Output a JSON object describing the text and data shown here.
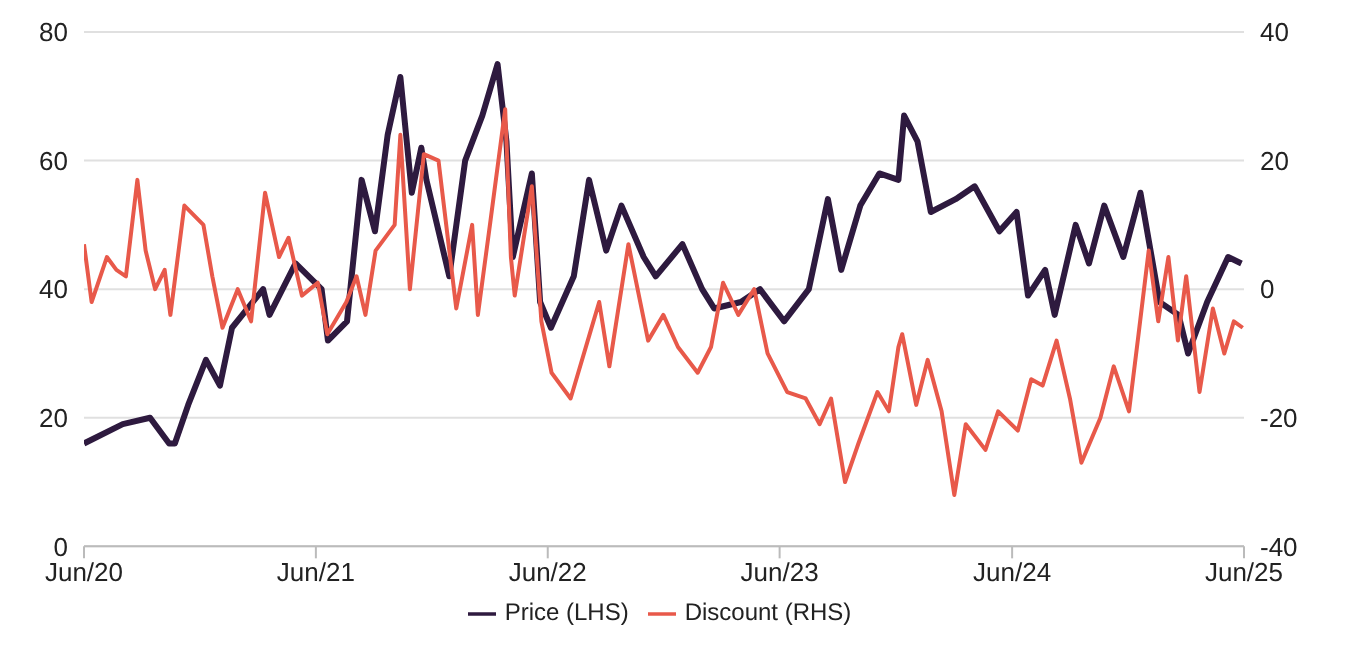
{
  "chart_data": {
    "type": "line",
    "xlim": [
      "2020-06",
      "2025-06"
    ],
    "xticks": [
      {
        "value": "2020-06",
        "label": "Jun/20"
      },
      {
        "value": "2021-06",
        "label": "Jun/21"
      },
      {
        "value": "2022-06",
        "label": "Jun/22"
      },
      {
        "value": "2023-06",
        "label": "Jun/23"
      },
      {
        "value": "2024-06",
        "label": "Jun/24"
      },
      {
        "value": "2025-06",
        "label": "Jun/25"
      }
    ],
    "ylim": [
      0,
      80
    ],
    "yticks": [
      0,
      20,
      40,
      60,
      80
    ],
    "y2lim": [
      -40,
      40
    ],
    "y2ticks": [
      -40,
      -20,
      0,
      20,
      40
    ],
    "grid": "y",
    "legend": "bottom",
    "marker": "none",
    "line_style": "solid",
    "series": [
      {
        "name": "Price (LHS)",
        "color": "#2e1a3f",
        "x": [
          "2020-06-01",
          "2020-08-01",
          "2020-09-13",
          "2020-10-13",
          "2020-10-22",
          "2020-11-12",
          "2020-12-10",
          "2021-01-01",
          "2021-01-20",
          "2021-03-10",
          "2021-03-20",
          "2021-04-30",
          "2021-06-10",
          "2021-06-20",
          "2021-07-20",
          "2021-08-12",
          "2021-09-02",
          "2021-09-22",
          "2021-10-12",
          "2021-10-30",
          "2021-11-14",
          "2021-11-22",
          "2021-12-28",
          "2022-01-22",
          "2022-02-18",
          "2022-03-14",
          "2022-03-28",
          "2022-04-07",
          "2022-05-07",
          "2022-05-20",
          "2022-06-06",
          "2022-07-12",
          "2022-08-05",
          "2022-09-01",
          "2022-09-25",
          "2022-10-30",
          "2022-11-18",
          "2022-12-30",
          "2023-01-30",
          "2023-02-18",
          "2023-04-01",
          "2023-05-01",
          "2023-06-08",
          "2023-07-17",
          "2023-08-16",
          "2023-09-06",
          "2023-10-06",
          "2023-11-05",
          "2023-12-05",
          "2023-12-14",
          "2024-01-04",
          "2024-01-25",
          "2024-03-04",
          "2024-04-03",
          "2024-05-12",
          "2024-06-08",
          "2024-06-26",
          "2024-07-23",
          "2024-08-07",
          "2024-09-09",
          "2024-09-30",
          "2024-10-24",
          "2024-11-23",
          "2024-12-20",
          "2025-01-19",
          "2025-02-18",
          "2025-03-05",
          "2025-04-04",
          "2025-05-07",
          "2025-05-28"
        ],
        "values": [
          16,
          19,
          20,
          16,
          16,
          22,
          29,
          25,
          34,
          40,
          36,
          44,
          40,
          32,
          35,
          57,
          49,
          64,
          73,
          55,
          62,
          57,
          42,
          60,
          67,
          75,
          63,
          45,
          58,
          38,
          34,
          42,
          57,
          46,
          53,
          45,
          42,
          47,
          40,
          37,
          38,
          40,
          35,
          40,
          54,
          43,
          53,
          58,
          57,
          67,
          63,
          52,
          54,
          56,
          49,
          52,
          39,
          43,
          36,
          50,
          44,
          53,
          45,
          55,
          38,
          36,
          30,
          38,
          45,
          44
        ]
      },
      {
        "name": "Discount (RHS)",
        "color": "#e8594a",
        "axis": "y2",
        "x": [
          "2020-06-01",
          "2020-06-13",
          "2020-07-07",
          "2020-07-22",
          "2020-08-06",
          "2020-08-24",
          "2020-09-06",
          "2020-09-21",
          "2020-10-06",
          "2020-10-15",
          "2020-11-06",
          "2020-12-06",
          "2020-12-20",
          "2021-01-05",
          "2021-01-29",
          "2021-02-19",
          "2021-03-13",
          "2021-04-04",
          "2021-04-19",
          "2021-05-10",
          "2021-06-04",
          "2021-06-19",
          "2021-07-19",
          "2021-08-04",
          "2021-08-18",
          "2021-09-03",
          "2021-10-03",
          "2021-10-12",
          "2021-10-27",
          "2021-11-18",
          "2021-12-11",
          "2022-01-08",
          "2022-02-02",
          "2022-02-11",
          "2022-03-02",
          "2022-03-26",
          "2022-04-04",
          "2022-04-10",
          "2022-05-07",
          "2022-05-22",
          "2022-06-07",
          "2022-07-07",
          "2022-08-06",
          "2022-08-21",
          "2022-09-06",
          "2022-10-06",
          "2022-11-06",
          "2022-11-30",
          "2022-12-23",
          "2023-01-23",
          "2023-02-13",
          "2023-03-04",
          "2023-03-28",
          "2023-04-22",
          "2023-05-13",
          "2023-06-13",
          "2023-07-12",
          "2023-08-03",
          "2023-08-21",
          "2023-09-12",
          "2023-10-03",
          "2023-11-02",
          "2023-11-20",
          "2023-12-05",
          "2023-12-11",
          "2024-01-02",
          "2024-01-20",
          "2024-02-11",
          "2024-03-02",
          "2024-03-20",
          "2024-04-20",
          "2024-05-10",
          "2024-06-10",
          "2024-07-01",
          "2024-07-19",
          "2024-08-10",
          "2024-08-31",
          "2024-09-18",
          "2024-10-18",
          "2024-11-08",
          "2024-12-02",
          "2024-12-17",
          "2025-01-02",
          "2025-01-17",
          "2025-02-02",
          "2025-02-17",
          "2025-03-02",
          "2025-03-23",
          "2025-04-13",
          "2025-05-01",
          "2025-05-16",
          "2025-05-30"
        ],
        "values": [
          7,
          -2,
          5,
          3,
          2,
          17,
          6,
          0,
          3,
          -4,
          13,
          10,
          2,
          -6,
          0,
          -5,
          15,
          5,
          8,
          -1,
          1,
          -7,
          -2,
          2,
          -4,
          6,
          10,
          24,
          0,
          21,
          20,
          -3,
          10,
          -4,
          10,
          28,
          5,
          -1,
          16,
          -5,
          -13,
          -17,
          -7,
          -2,
          -12,
          7,
          -8,
          -4,
          -9,
          -13,
          -9,
          1,
          -4,
          0,
          -10,
          -16,
          -17,
          -21,
          -17,
          -30,
          -24,
          -16,
          -19,
          -9,
          -7,
          -18,
          -11,
          -19,
          -32,
          -21,
          -25,
          -19,
          -22,
          -14,
          -15,
          -8,
          -17,
          -27,
          -20,
          -12,
          -19,
          -7,
          6,
          -5,
          5,
          -8,
          2,
          -16,
          -3,
          -10,
          -5,
          -6
        ]
      }
    ]
  }
}
